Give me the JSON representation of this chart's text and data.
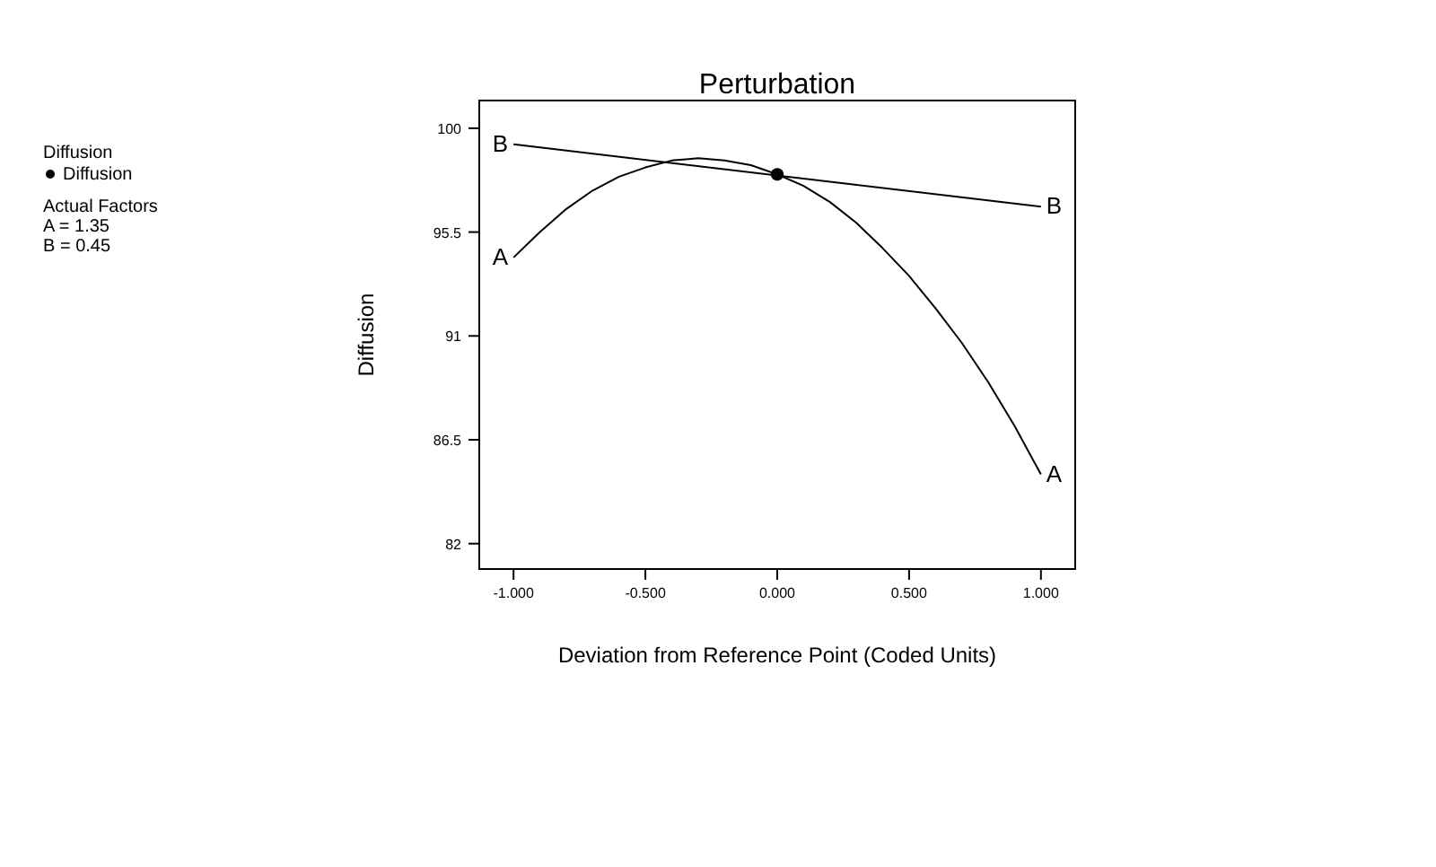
{
  "chart_data": {
    "type": "line",
    "title": "Perturbation",
    "xlabel": "Deviation from Reference Point (Coded Units)",
    "ylabel": "Diffusion",
    "legend_title": "Diffusion",
    "legend": "top left",
    "xlim": [
      -1.13,
      1.13
    ],
    "xticks": [
      {
        "value": -1,
        "label": "-1.000"
      },
      {
        "value": -0.5,
        "label": "-0.500"
      },
      {
        "value": 0,
        "label": "0.000"
      },
      {
        "value": 0.5,
        "label": "0.500"
      },
      {
        "value": 1,
        "label": "1.000"
      }
    ],
    "ylim": [
      80.9,
      101.2
    ],
    "yticks": [
      82,
      86.5,
      91,
      95.5,
      100
    ],
    "grid": false,
    "marker": "none",
    "line_style": "solid",
    "series": [
      {
        "name": "A",
        "color": "#000000",
        "x": [
          -1,
          -0.9,
          -0.8,
          -0.7,
          -0.6,
          -0.5,
          -0.4,
          -0.3,
          -0.2,
          -0.1,
          0,
          0.1,
          0.2,
          0.3,
          0.4,
          0.5,
          0.6,
          0.7,
          0.8,
          0.9,
          1
        ],
        "values": [
          94.4,
          95.5,
          96.5,
          97.3,
          97.9,
          98.3,
          98.6,
          98.7,
          98.6,
          98.4,
          98.0,
          97.5,
          96.8,
          95.9,
          94.8,
          93.6,
          92.2,
          90.7,
          89.0,
          87.1,
          85.0
        ]
      },
      {
        "name": "B",
        "color": "#000000",
        "x": [
          -1,
          1
        ],
        "values": [
          99.3,
          96.6
        ]
      },
      {
        "name": "Diffusion",
        "type": "scatter",
        "marker": "circle",
        "color": "#000000",
        "x": [
          0
        ],
        "values": [
          98.0
        ]
      }
    ],
    "annotations": [
      "Actual Factors",
      "A = 1.35",
      "B = 0.45"
    ]
  }
}
